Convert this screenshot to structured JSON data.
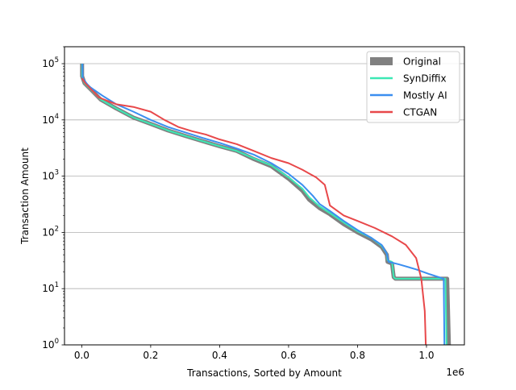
{
  "chart_data": {
    "type": "line",
    "xlabel": "Transactions, Sorted by Amount",
    "ylabel": "Transaction Amount",
    "x_offset_text": "1e6",
    "xlim": [
      -50000,
      1110000
    ],
    "ylim": [
      1,
      200000
    ],
    "y_scale": "log",
    "grid": "y-major",
    "legend_position": "top-right",
    "x_ticks": [
      {
        "value": 0,
        "label": "0.0"
      },
      {
        "value": 200000,
        "label": "0.2"
      },
      {
        "value": 400000,
        "label": "0.4"
      },
      {
        "value": 600000,
        "label": "0.6"
      },
      {
        "value": 800000,
        "label": "0.8"
      },
      {
        "value": 1000000,
        "label": "1.0"
      }
    ],
    "y_ticks": [
      {
        "value": 1,
        "base": "10",
        "exp": "0"
      },
      {
        "value": 10,
        "base": "10",
        "exp": "1"
      },
      {
        "value": 100,
        "base": "10",
        "exp": "2"
      },
      {
        "value": 1000,
        "base": "10",
        "exp": "3"
      },
      {
        "value": 10000,
        "base": "10",
        "exp": "4"
      },
      {
        "value": 100000,
        "base": "10",
        "exp": "5"
      }
    ],
    "series": [
      {
        "name": "Original",
        "color": "#808080",
        "width": 5,
        "points": [
          [
            1000,
            100000
          ],
          [
            1000,
            60000
          ],
          [
            8000,
            45000
          ],
          [
            30000,
            33000
          ],
          [
            55000,
            23000
          ],
          [
            100000,
            16000
          ],
          [
            150000,
            11000
          ],
          [
            200000,
            8500
          ],
          [
            250000,
            6500
          ],
          [
            300000,
            5200
          ],
          [
            350000,
            4200
          ],
          [
            400000,
            3400
          ],
          [
            450000,
            2800
          ],
          [
            500000,
            2000
          ],
          [
            550000,
            1500
          ],
          [
            600000,
            900
          ],
          [
            640000,
            550
          ],
          [
            660000,
            380
          ],
          [
            690000,
            270
          ],
          [
            720000,
            210
          ],
          [
            760000,
            140
          ],
          [
            800000,
            100
          ],
          [
            840000,
            75
          ],
          [
            870000,
            55
          ],
          [
            885000,
            40
          ],
          [
            887000,
            30
          ],
          [
            900000,
            28
          ],
          [
            905000,
            16
          ],
          [
            910000,
            15
          ],
          [
            1060000,
            15
          ],
          [
            1065000,
            1
          ]
        ]
      },
      {
        "name": "SynDiffix",
        "color": "#3ce8b4",
        "width": 2,
        "points": [
          [
            1000,
            100000
          ],
          [
            1000,
            60000
          ],
          [
            8000,
            45000
          ],
          [
            30000,
            33000
          ],
          [
            55000,
            23000
          ],
          [
            100000,
            16000
          ],
          [
            150000,
            11000
          ],
          [
            200000,
            8500
          ],
          [
            250000,
            6500
          ],
          [
            300000,
            5200
          ],
          [
            350000,
            4200
          ],
          [
            400000,
            3400
          ],
          [
            450000,
            2800
          ],
          [
            500000,
            2050
          ],
          [
            550000,
            1550
          ],
          [
            600000,
            950
          ],
          [
            640000,
            600
          ],
          [
            660000,
            420
          ],
          [
            690000,
            290
          ],
          [
            720000,
            220
          ],
          [
            760000,
            150
          ],
          [
            800000,
            105
          ],
          [
            840000,
            80
          ],
          [
            870000,
            58
          ],
          [
            885000,
            42
          ],
          [
            887000,
            32
          ],
          [
            900000,
            30
          ],
          [
            905000,
            16
          ],
          [
            910000,
            15
          ],
          [
            1055000,
            15
          ],
          [
            1058000,
            1
          ]
        ]
      },
      {
        "name": "Mostly AI",
        "color": "#3b8ef0",
        "width": 2,
        "points": [
          [
            2000,
            100000
          ],
          [
            3000,
            55000
          ],
          [
            20000,
            40000
          ],
          [
            60000,
            27000
          ],
          [
            100000,
            19000
          ],
          [
            150000,
            14000
          ],
          [
            200000,
            10000
          ],
          [
            250000,
            7500
          ],
          [
            300000,
            6000
          ],
          [
            350000,
            4800
          ],
          [
            400000,
            3900
          ],
          [
            450000,
            3100
          ],
          [
            500000,
            2400
          ],
          [
            550000,
            1700
          ],
          [
            600000,
            1100
          ],
          [
            640000,
            700
          ],
          [
            670000,
            450
          ],
          [
            690000,
            320
          ],
          [
            720000,
            240
          ],
          [
            760000,
            160
          ],
          [
            800000,
            110
          ],
          [
            840000,
            80
          ],
          [
            870000,
            60
          ],
          [
            885000,
            42
          ],
          [
            890000,
            30
          ],
          [
            920000,
            27
          ],
          [
            970000,
            22
          ],
          [
            1010000,
            18
          ],
          [
            1050000,
            15
          ],
          [
            1052000,
            1
          ]
        ]
      },
      {
        "name": "CTGAN",
        "color": "#e8484a",
        "width": 2,
        "points": [
          [
            1000,
            55000
          ],
          [
            10000,
            45000
          ],
          [
            50000,
            25000
          ],
          [
            100000,
            19000
          ],
          [
            150000,
            17000
          ],
          [
            200000,
            14000
          ],
          [
            240000,
            10000
          ],
          [
            280000,
            7500
          ],
          [
            320000,
            6300
          ],
          [
            360000,
            5500
          ],
          [
            400000,
            4500
          ],
          [
            450000,
            3700
          ],
          [
            500000,
            2800
          ],
          [
            550000,
            2100
          ],
          [
            600000,
            1700
          ],
          [
            640000,
            1300
          ],
          [
            680000,
            950
          ],
          [
            705000,
            700
          ],
          [
            715000,
            400
          ],
          [
            720000,
            300
          ],
          [
            760000,
            200
          ],
          [
            800000,
            160
          ],
          [
            850000,
            120
          ],
          [
            900000,
            85
          ],
          [
            940000,
            60
          ],
          [
            970000,
            35
          ],
          [
            985000,
            15
          ],
          [
            995000,
            4
          ],
          [
            998000,
            1
          ]
        ]
      }
    ]
  }
}
